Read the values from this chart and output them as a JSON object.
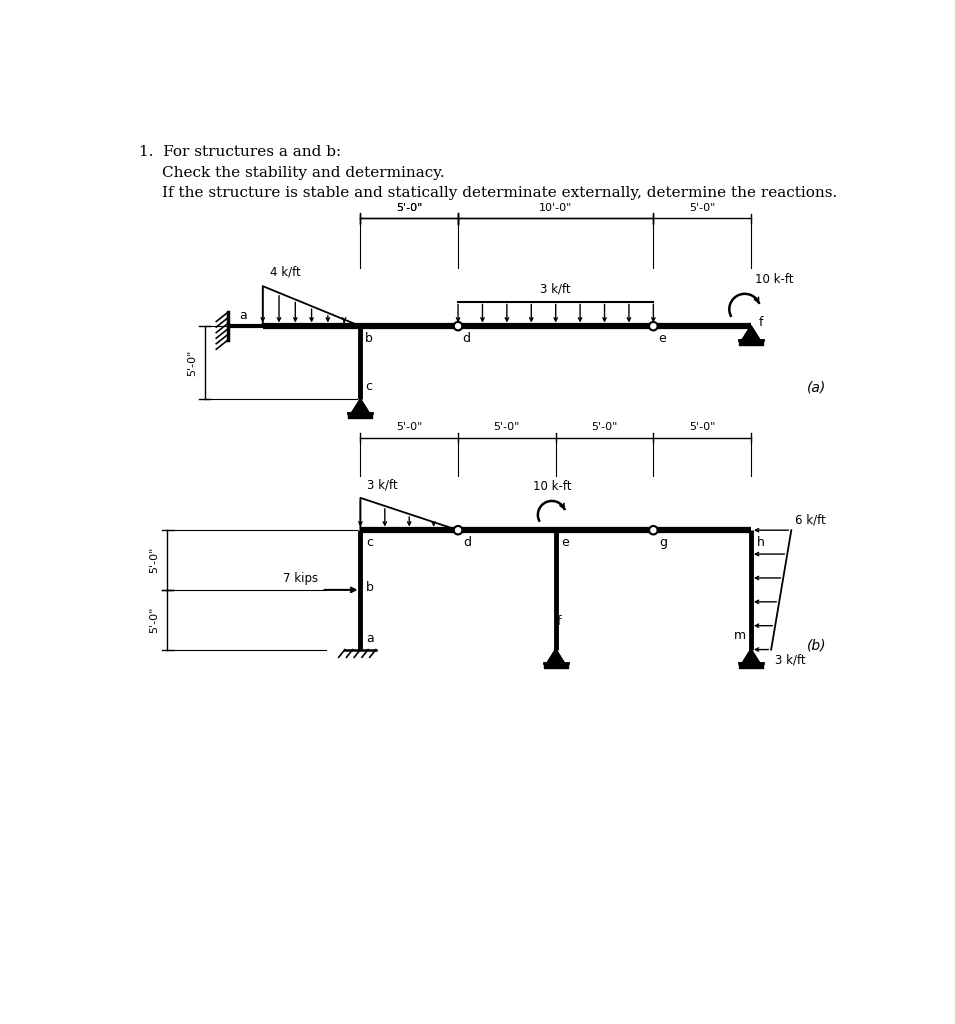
{
  "bg_color": "#ffffff",
  "text_color": "#000000",
  "dim_color": "#000000",
  "struct_color": "#000000",
  "header1": "1.  For structures a and b:",
  "header2": "Check the stability and determinacy.",
  "header3": "If the structure is stable and statically determinate externally, determine the reactions."
}
